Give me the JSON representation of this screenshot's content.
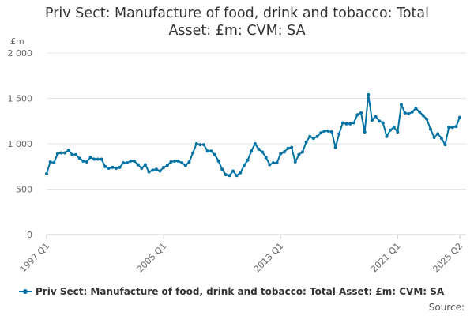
{
  "title_lines": [
    "Priv Sect: Manufacture of food, drink and tobacco: Total",
    "Asset: £m: CVM: SA"
  ],
  "unit": "£m",
  "legend_label": "Priv Sect: Manufacture of food, drink and tobacco: Total Asset: £m: CVM: SA",
  "source_label": "Source:",
  "colors": {
    "series": "#0071a3",
    "grid": "#e6e6e6",
    "axis": "#cccccc"
  },
  "chart_data": {
    "type": "line",
    "title": "Priv Sect: Manufacture of food, drink and tobacco: Total Asset: £m: CVM: SA",
    "ylabel": "£m",
    "ylim": [
      0,
      2000
    ],
    "yticks": [
      0,
      500,
      1000,
      1500,
      2000
    ],
    "ytick_labels": [
      "0",
      "500",
      "1 000",
      "1 500",
      "2 000"
    ],
    "xtick_labels": [
      "1997 Q1",
      "2005 Q1",
      "2013 Q1",
      "2021 Q1",
      "2025 Q2"
    ],
    "xtick_index": [
      0,
      32,
      64,
      96,
      113
    ],
    "grid": true,
    "legend_position": "bottom",
    "series": [
      {
        "name": "Priv Sect: Manufacture of food, drink and tobacco: Total Asset: £m: CVM: SA",
        "x_start": "1997 Q1",
        "x_end": "2025 Q2",
        "values": [
          670,
          800,
          790,
          890,
          900,
          900,
          930,
          880,
          880,
          840,
          810,
          800,
          850,
          830,
          830,
          830,
          750,
          730,
          740,
          730,
          740,
          790,
          790,
          810,
          810,
          770,
          730,
          770,
          690,
          710,
          720,
          700,
          740,
          760,
          800,
          810,
          810,
          790,
          760,
          800,
          900,
          1000,
          990,
          990,
          920,
          920,
          880,
          810,
          720,
          660,
          650,
          700,
          650,
          680,
          760,
          820,
          920,
          1000,
          940,
          910,
          850,
          770,
          790,
          790,
          890,
          910,
          950,
          960,
          800,
          880,
          910,
          1020,
          1080,
          1060,
          1080,
          1120,
          1140,
          1140,
          1130,
          960,
          1110,
          1230,
          1220,
          1220,
          1230,
          1320,
          1340,
          1130,
          1540,
          1260,
          1300,
          1250,
          1230,
          1080,
          1150,
          1180,
          1130,
          1430,
          1340,
          1330,
          1350,
          1390,
          1350,
          1310,
          1270,
          1160,
          1070,
          1110,
          1060,
          990,
          1180,
          1180,
          1190,
          1290
        ]
      }
    ]
  }
}
